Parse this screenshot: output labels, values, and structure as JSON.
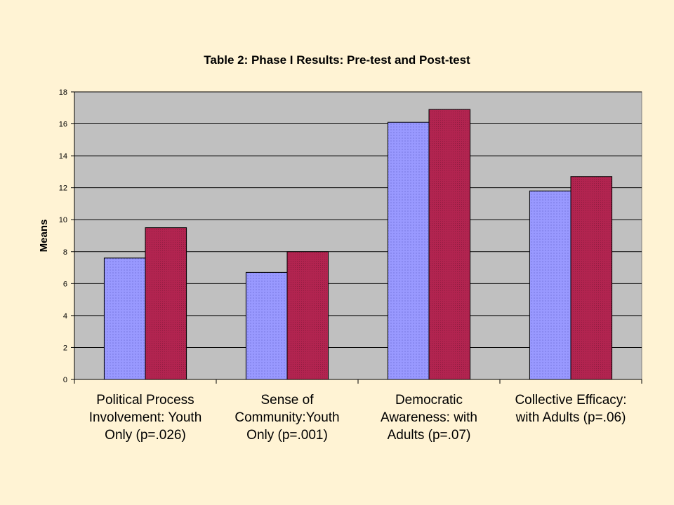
{
  "chart_data": {
    "type": "bar",
    "title": "Table 2: Phase I Results: Pre-test and Post-test",
    "xlabel": "",
    "ylabel": "Means",
    "ylim": [
      0,
      18
    ],
    "yticks": [
      0,
      2,
      4,
      6,
      8,
      10,
      12,
      14,
      16,
      18
    ],
    "grid": true,
    "legend": "none",
    "categories": [
      "Political Process Involvement: Youth Only (p=.026)",
      "Sense of Community:Youth Only (p=.001)",
      "Democratic Awareness: with Adults (p=.07)",
      "Collective Efficacy: with Adults (p=.06)"
    ],
    "category_lines": [
      [
        "Political Process",
        "Involvement: Youth",
        "Only (p=.026)"
      ],
      [
        "Sense of",
        "Community:Youth",
        "Only (p=.001)"
      ],
      [
        "Democratic",
        "Awareness: with",
        "Adults (p=.07)"
      ],
      [
        "Collective Efficacy:",
        "with Adults (p=.06)"
      ]
    ],
    "series": [
      {
        "values": [
          7.6,
          6.7,
          16.1,
          11.8
        ],
        "color": "#9999FF"
      },
      {
        "values": [
          9.5,
          8.0,
          16.9,
          12.7
        ],
        "color": "#B22450"
      }
    ],
    "plot_background": "#C0C0C0"
  }
}
